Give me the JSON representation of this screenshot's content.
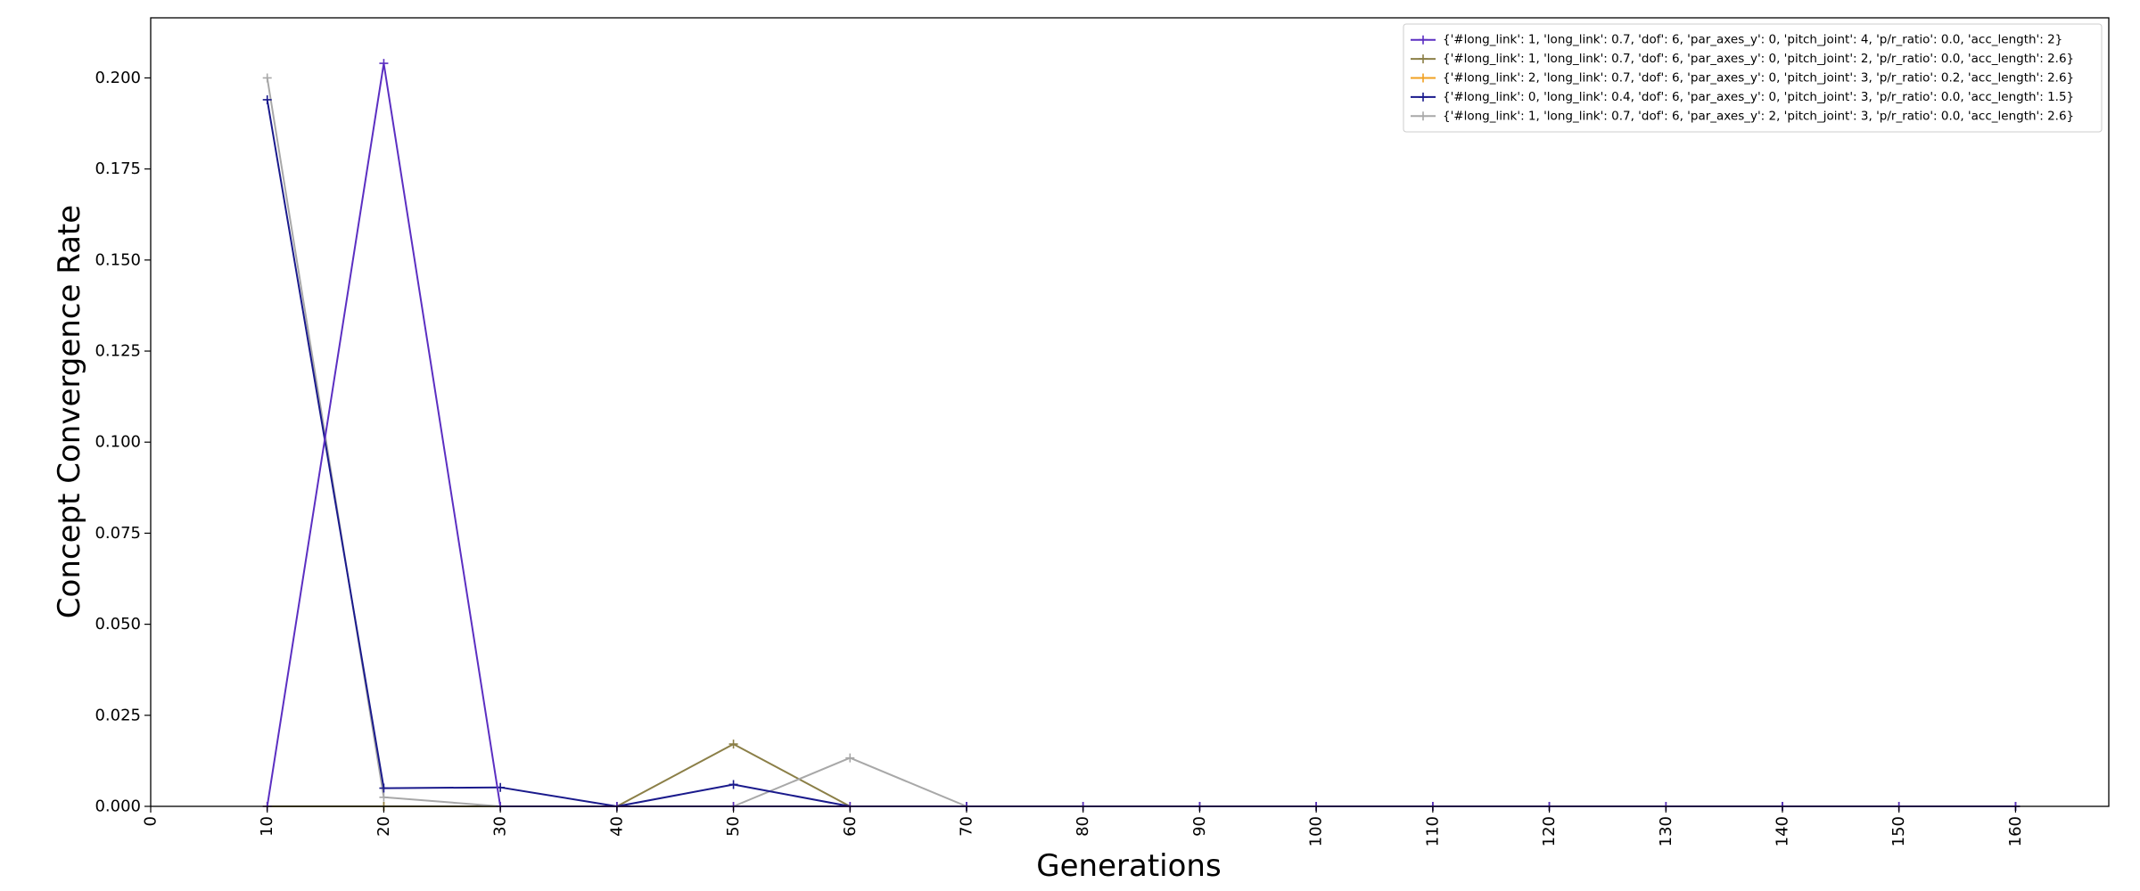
{
  "chart_data": {
    "type": "line",
    "title": "",
    "xlabel": "Generations",
    "ylabel": "Concept Convergence Rate",
    "xlim": [
      0,
      168
    ],
    "ylim": [
      0,
      0.2165
    ],
    "xticks": [
      0,
      10,
      20,
      30,
      40,
      50,
      60,
      70,
      80,
      90,
      100,
      110,
      120,
      130,
      140,
      150,
      160
    ],
    "yticks": [
      0.0,
      0.025,
      0.05,
      0.075,
      0.1,
      0.125,
      0.15,
      0.175,
      0.2
    ],
    "ytick_labels": [
      "0.000",
      "0.025",
      "0.050",
      "0.075",
      "0.100",
      "0.125",
      "0.150",
      "0.175",
      "0.200"
    ],
    "grid": false,
    "legend_position": "top-right",
    "marker": "+",
    "x": [
      10,
      20,
      30,
      40,
      50,
      60,
      70,
      80,
      90,
      100,
      110,
      120,
      130,
      140,
      150,
      160
    ],
    "series": [
      {
        "name": "{'#long_link': 1, 'long_link': 0.7, 'dof': 6, 'par_axes_y': 0, 'pitch_joint': 4, 'p/r_ratio': 0.0, 'acc_length': 2}",
        "color": "#5b2fc2",
        "values": [
          0.0,
          0.204,
          0.0,
          0.0,
          0.0,
          0.0,
          0.0,
          0.0,
          0.0,
          0.0,
          0.0,
          0.0,
          0.0,
          0.0,
          0.0,
          0.0
        ]
      },
      {
        "name": "{'#long_link': 1, 'long_link': 0.7, 'dof': 6, 'par_axes_y': 0, 'pitch_joint': 2, 'p/r_ratio': 0.0, 'acc_length': 2.6}",
        "color": "#8b7f47",
        "values": [
          0.0,
          0.0,
          0.0,
          0.0,
          0.0171,
          0.0,
          0.0,
          0.0,
          0.0,
          0.0,
          0.0,
          0.0,
          0.0,
          0.0,
          0.0,
          0.0
        ]
      },
      {
        "name": "{'#long_link': 2, 'long_link': 0.7, 'dof': 6, 'par_axes_y': 0, 'pitch_joint': 3, 'p/r_ratio': 0.2, 'acc_length': 2.6}",
        "color": "#f0a020",
        "values": [
          0.0,
          0.0,
          0.0,
          0.0,
          0.0,
          0.0,
          0.0,
          0.0,
          0.0,
          0.0,
          0.0,
          0.0,
          0.0,
          0.0,
          0.0,
          0.0
        ]
      },
      {
        "name": "{'#long_link': 0, 'long_link': 0.4, 'dof': 6, 'par_axes_y': 0, 'pitch_joint': 3, 'p/r_ratio': 0.0, 'acc_length': 1.5}",
        "color": "#1a1a8c",
        "values": [
          0.194,
          0.005,
          0.0052,
          0.0,
          0.006,
          0.0,
          0.0,
          0.0,
          0.0,
          0.0,
          0.0,
          0.0,
          0.0,
          0.0,
          0.0,
          0.0
        ]
      },
      {
        "name": "{'#long_link': 1, 'long_link': 0.7, 'dof': 6, 'par_axes_y': 2, 'pitch_joint': 3, 'p/r_ratio': 0.0, 'acc_length': 2.6}",
        "color": "#a8a8a8",
        "values": [
          0.2,
          0.0025,
          0.0,
          0.0,
          0.0,
          0.0133,
          0.0,
          0.0,
          0.0,
          0.0,
          0.0,
          0.0,
          0.0,
          0.0,
          0.0,
          0.0
        ]
      }
    ]
  }
}
